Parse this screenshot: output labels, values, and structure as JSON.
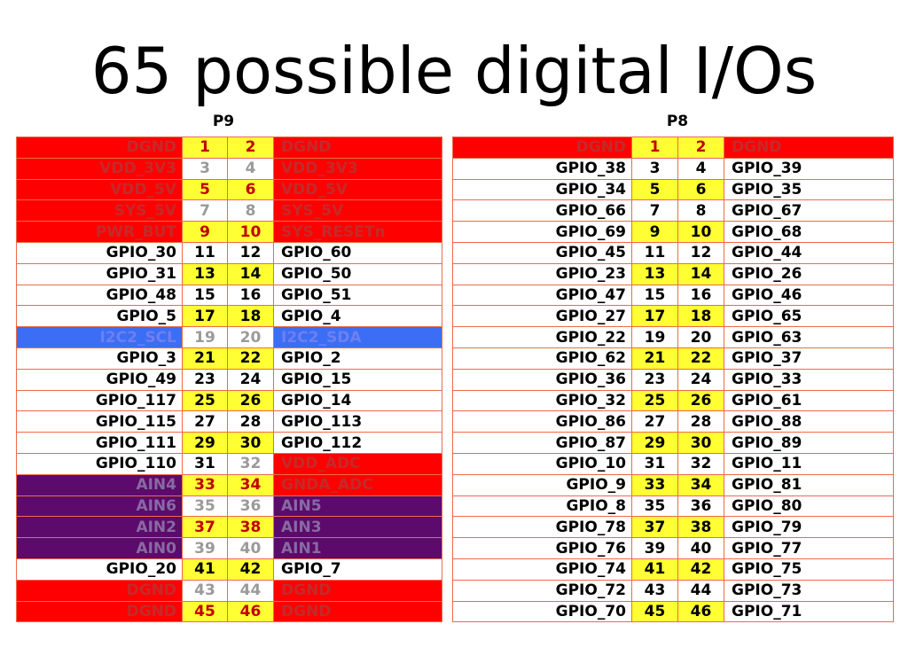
{
  "title": "65 possible digital I/Os",
  "headers": {
    "p9": "P9",
    "p8": "P8"
  },
  "colors": {
    "red": "#ff0000",
    "yellow": "#ffff33",
    "blue": "#3b6ef5",
    "purple": "#5c0a6c",
    "border": "#ee6a4a"
  },
  "p9": [
    {
      "left": "DGND",
      "lpin": "1",
      "rpin": "2",
      "right": "DGND",
      "lc": "red",
      "rc": "red",
      "lp": "pinYred",
      "rp": "pinYred"
    },
    {
      "left": "VDD_3V3",
      "lpin": "3",
      "rpin": "4",
      "right": "VDD_3V3",
      "lc": "red",
      "rc": "red",
      "lp": "pinGray",
      "rp": "pinGray"
    },
    {
      "left": "VDD_5V",
      "lpin": "5",
      "rpin": "6",
      "right": "VDD_5V",
      "lc": "red",
      "rc": "red",
      "lp": "pinYred",
      "rp": "pinYred"
    },
    {
      "left": "SYS_5V",
      "lpin": "7",
      "rpin": "8",
      "right": "SYS_5V",
      "lc": "red",
      "rc": "red",
      "lp": "pinGray",
      "rp": "pinGray"
    },
    {
      "left": "PWR_BUT",
      "lpin": "9",
      "rpin": "10",
      "right": "SYS_RESETn",
      "lc": "red",
      "rc": "red",
      "lp": "pinYred",
      "rp": "pinYred"
    },
    {
      "left": "GPIO_30",
      "lpin": "11",
      "rpin": "12",
      "right": "GPIO_60",
      "lc": "white",
      "rc": "white",
      "lp": "pinW",
      "rp": "pinW"
    },
    {
      "left": "GPIO_31",
      "lpin": "13",
      "rpin": "14",
      "right": "GPIO_50",
      "lc": "white",
      "rc": "white",
      "lp": "pinY",
      "rp": "pinY"
    },
    {
      "left": "GPIO_48",
      "lpin": "15",
      "rpin": "16",
      "right": "GPIO_51",
      "lc": "white",
      "rc": "white",
      "lp": "pinW",
      "rp": "pinW"
    },
    {
      "left": "GPIO_5",
      "lpin": "17",
      "rpin": "18",
      "right": "GPIO_4",
      "lc": "white",
      "rc": "white",
      "lp": "pinY",
      "rp": "pinY"
    },
    {
      "left": "I2C2_SCL",
      "lpin": "19",
      "rpin": "20",
      "right": "I2C2_SDA",
      "lc": "blue",
      "rc": "blue",
      "lp": "pinGray",
      "rp": "pinGray"
    },
    {
      "left": "GPIO_3",
      "lpin": "21",
      "rpin": "22",
      "right": "GPIO_2",
      "lc": "white",
      "rc": "white",
      "lp": "pinY",
      "rp": "pinY"
    },
    {
      "left": "GPIO_49",
      "lpin": "23",
      "rpin": "24",
      "right": "GPIO_15",
      "lc": "white",
      "rc": "white",
      "lp": "pinW",
      "rp": "pinW"
    },
    {
      "left": "GPIO_117",
      "lpin": "25",
      "rpin": "26",
      "right": "GPIO_14",
      "lc": "white",
      "rc": "white",
      "lp": "pinY",
      "rp": "pinY"
    },
    {
      "left": "GPIO_115",
      "lpin": "27",
      "rpin": "28",
      "right": "GPIO_113",
      "lc": "white",
      "rc": "white",
      "lp": "pinW",
      "rp": "pinW"
    },
    {
      "left": "GPIO_111",
      "lpin": "29",
      "rpin": "30",
      "right": "GPIO_112",
      "lc": "white",
      "rc": "white",
      "lp": "pinY",
      "rp": "pinY"
    },
    {
      "left": "GPIO_110",
      "lpin": "31",
      "rpin": "32",
      "right": "VDD_ADC",
      "lc": "white",
      "rc": "red",
      "lp": "pinW",
      "rp": "pinGray"
    },
    {
      "left": "AIN4",
      "lpin": "33",
      "rpin": "34",
      "right": "GNDA_ADC",
      "lc": "purple",
      "rc": "red",
      "lp": "pinYred",
      "rp": "pinYred"
    },
    {
      "left": "AIN6",
      "lpin": "35",
      "rpin": "36",
      "right": "AIN5",
      "lc": "purple",
      "rc": "purple",
      "lp": "pinGray",
      "rp": "pinGray"
    },
    {
      "left": "AIN2",
      "lpin": "37",
      "rpin": "38",
      "right": "AIN3",
      "lc": "purple",
      "rc": "purple",
      "lp": "pinYred",
      "rp": "pinYred"
    },
    {
      "left": "AIN0",
      "lpin": "39",
      "rpin": "40",
      "right": "AIN1",
      "lc": "purple",
      "rc": "purple",
      "lp": "pinGray",
      "rp": "pinGray"
    },
    {
      "left": "GPIO_20",
      "lpin": "41",
      "rpin": "42",
      "right": "GPIO_7",
      "lc": "white",
      "rc": "white",
      "lp": "pinY",
      "rp": "pinY"
    },
    {
      "left": "DGND",
      "lpin": "43",
      "rpin": "44",
      "right": "DGND",
      "lc": "red",
      "rc": "red",
      "lp": "pinGray",
      "rp": "pinGray"
    },
    {
      "left": "DGND",
      "lpin": "45",
      "rpin": "46",
      "right": "DGND",
      "lc": "red",
      "rc": "red",
      "lp": "pinYred",
      "rp": "pinYred"
    }
  ],
  "p8": [
    {
      "left": "DGND",
      "lpin": "1",
      "rpin": "2",
      "right": "DGND",
      "lc": "red",
      "rc": "red",
      "lp": "pinYred",
      "rp": "pinYred"
    },
    {
      "left": "GPIO_38",
      "lpin": "3",
      "rpin": "4",
      "right": "GPIO_39",
      "lc": "white",
      "rc": "white",
      "lp": "pinW",
      "rp": "pinW"
    },
    {
      "left": "GPIO_34",
      "lpin": "5",
      "rpin": "6",
      "right": "GPIO_35",
      "lc": "white",
      "rc": "white",
      "lp": "pinY",
      "rp": "pinY"
    },
    {
      "left": "GPIO_66",
      "lpin": "7",
      "rpin": "8",
      "right": "GPIO_67",
      "lc": "white",
      "rc": "white",
      "lp": "pinW",
      "rp": "pinW"
    },
    {
      "left": "GPIO_69",
      "lpin": "9",
      "rpin": "10",
      "right": "GPIO_68",
      "lc": "white",
      "rc": "white",
      "lp": "pinY",
      "rp": "pinY"
    },
    {
      "left": "GPIO_45",
      "lpin": "11",
      "rpin": "12",
      "right": "GPIO_44",
      "lc": "white",
      "rc": "white",
      "lp": "pinW",
      "rp": "pinW"
    },
    {
      "left": "GPIO_23",
      "lpin": "13",
      "rpin": "14",
      "right": "GPIO_26",
      "lc": "white",
      "rc": "white",
      "lp": "pinY",
      "rp": "pinY"
    },
    {
      "left": "GPIO_47",
      "lpin": "15",
      "rpin": "16",
      "right": "GPIO_46",
      "lc": "white",
      "rc": "white",
      "lp": "pinW",
      "rp": "pinW"
    },
    {
      "left": "GPIO_27",
      "lpin": "17",
      "rpin": "18",
      "right": "GPIO_65",
      "lc": "white",
      "rc": "white",
      "lp": "pinY",
      "rp": "pinY"
    },
    {
      "left": "GPIO_22",
      "lpin": "19",
      "rpin": "20",
      "right": "GPIO_63",
      "lc": "white",
      "rc": "white",
      "lp": "pinW",
      "rp": "pinW"
    },
    {
      "left": "GPIO_62",
      "lpin": "21",
      "rpin": "22",
      "right": "GPIO_37",
      "lc": "white",
      "rc": "white",
      "lp": "pinY",
      "rp": "pinY"
    },
    {
      "left": "GPIO_36",
      "lpin": "23",
      "rpin": "24",
      "right": "GPIO_33",
      "lc": "white",
      "rc": "white",
      "lp": "pinW",
      "rp": "pinW"
    },
    {
      "left": "GPIO_32",
      "lpin": "25",
      "rpin": "26",
      "right": "GPIO_61",
      "lc": "white",
      "rc": "white",
      "lp": "pinY",
      "rp": "pinY"
    },
    {
      "left": "GPIO_86",
      "lpin": "27",
      "rpin": "28",
      "right": "GPIO_88",
      "lc": "white",
      "rc": "white",
      "lp": "pinW",
      "rp": "pinW"
    },
    {
      "left": "GPIO_87",
      "lpin": "29",
      "rpin": "30",
      "right": "GPIO_89",
      "lc": "white",
      "rc": "white",
      "lp": "pinY",
      "rp": "pinY"
    },
    {
      "left": "GPIO_10",
      "lpin": "31",
      "rpin": "32",
      "right": "GPIO_11",
      "lc": "white",
      "rc": "white",
      "lp": "pinW",
      "rp": "pinW"
    },
    {
      "left": "GPIO_9",
      "lpin": "33",
      "rpin": "34",
      "right": "GPIO_81",
      "lc": "white",
      "rc": "white",
      "lp": "pinY",
      "rp": "pinY"
    },
    {
      "left": "GPIO_8",
      "lpin": "35",
      "rpin": "36",
      "right": "GPIO_80",
      "lc": "white",
      "rc": "white",
      "lp": "pinW",
      "rp": "pinW"
    },
    {
      "left": "GPIO_78",
      "lpin": "37",
      "rpin": "38",
      "right": "GPIO_79",
      "lc": "white",
      "rc": "white",
      "lp": "pinY",
      "rp": "pinY"
    },
    {
      "left": "GPIO_76",
      "lpin": "39",
      "rpin": "40",
      "right": "GPIO_77",
      "lc": "white",
      "rc": "white",
      "lp": "pinW",
      "rp": "pinW"
    },
    {
      "left": "GPIO_74",
      "lpin": "41",
      "rpin": "42",
      "right": "GPIO_75",
      "lc": "white",
      "rc": "white",
      "lp": "pinY",
      "rp": "pinY"
    },
    {
      "left": "GPIO_72",
      "lpin": "43",
      "rpin": "44",
      "right": "GPIO_73",
      "lc": "white",
      "rc": "white",
      "lp": "pinW",
      "rp": "pinW"
    },
    {
      "left": "GPIO_70",
      "lpin": "45",
      "rpin": "46",
      "right": "GPIO_71",
      "lc": "white",
      "rc": "white",
      "lp": "pinY",
      "rp": "pinY"
    }
  ]
}
